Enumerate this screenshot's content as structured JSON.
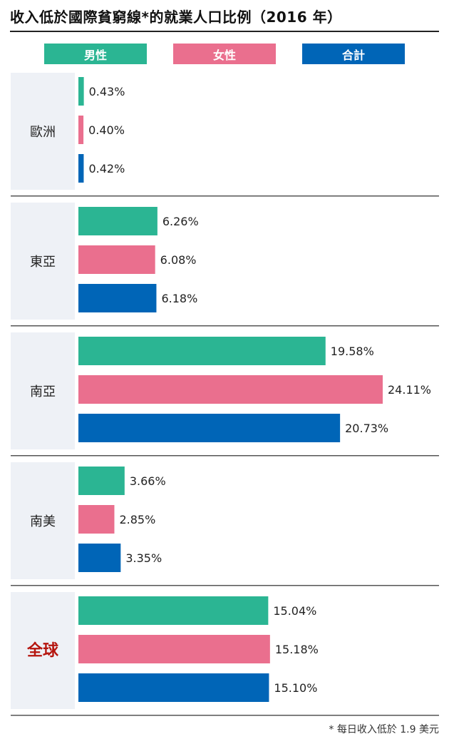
{
  "title": "收入低於國際貧窮線*的就業人口比例（2016 年）",
  "footnote": "* 每日收入低於 1.9 美元",
  "colors": {
    "male": "#2bb593",
    "female": "#ea6f8e",
    "total": "#0065b7",
    "region_bg": "#eef1f6",
    "global_label": "#b5150e",
    "separator": "#555555"
  },
  "chart_data": {
    "type": "bar",
    "orientation": "horizontal",
    "title": "收入低於國際貧窮線*的就業人口比例（2016 年）",
    "categories": [
      "歐洲",
      "東亞",
      "南亞",
      "南美",
      "全球"
    ],
    "series": [
      {
        "name": "男性",
        "values": [
          0.43,
          6.26,
          19.58,
          3.66,
          15.04
        ],
        "labels": [
          "0.43%",
          "6.26%",
          "19.58%",
          "3.66%",
          "15.04%"
        ]
      },
      {
        "name": "女性",
        "values": [
          0.4,
          6.08,
          24.11,
          2.85,
          15.18
        ],
        "labels": [
          "0.40%",
          "6.08%",
          "24.11%",
          "2.85%",
          "15.18%"
        ]
      },
      {
        "name": "合計",
        "values": [
          0.42,
          6.18,
          20.73,
          3.35,
          15.1
        ],
        "labels": [
          "0.42%",
          "6.18%",
          "20.73%",
          "3.35%",
          "15.10%"
        ]
      }
    ],
    "xlim": [
      0,
      24.11
    ],
    "legend_position": "top",
    "grid": false
  }
}
